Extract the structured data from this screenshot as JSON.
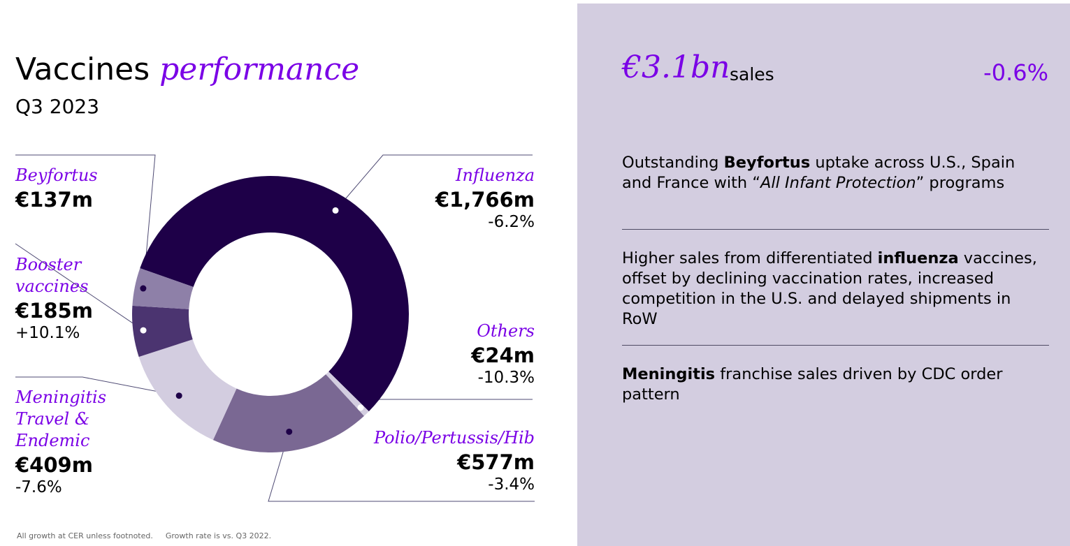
{
  "header": {
    "title_main": "Vaccines",
    "title_accent": "performance",
    "subtitle": "Q3 2023"
  },
  "chart_data": {
    "type": "pie",
    "variant": "donut",
    "unit": "€m",
    "segments": [
      {
        "name": "Influenza",
        "value": 1766,
        "value_label": "€1,766m",
        "growth": "-6.2%",
        "color": "#1e0048"
      },
      {
        "name": "Others",
        "value": 24,
        "value_label": "€24m",
        "growth": "-10.3%",
        "color": "#d3cde0"
      },
      {
        "name": "Polio/Pertussis/Hib",
        "value": 577,
        "value_label": "€577m",
        "growth": "-3.4%",
        "color": "#7a6893"
      },
      {
        "name": "Meningitis Travel & Endemic",
        "name_lines": [
          "Meningitis",
          "Travel &",
          "Endemic"
        ],
        "value": 409,
        "value_label": "€409m",
        "growth": "-7.6%",
        "color": "#d3cde0"
      },
      {
        "name": "Booster vaccines",
        "name_lines": [
          "Booster",
          "vaccines"
        ],
        "value": 185,
        "value_label": "€185m",
        "growth": "+10.1%",
        "color": "#4b3470"
      },
      {
        "name": "Beyfortus",
        "value": 137,
        "value_label": "€137m",
        "growth": "",
        "color": "#8e80a8"
      }
    ]
  },
  "footnote": {
    "cer_note": "All growth at CER unless footnoted.",
    "rate_note": "Growth rate is vs. Q3 2022."
  },
  "summary": {
    "sales_amount": "€3.1bn",
    "sales_word": "sales",
    "sales_growth": "-0.6%"
  },
  "highlights": [
    {
      "pre": "Outstanding ",
      "bold": "Beyfortus",
      "mid": " uptake across U.S., Spain and France with “",
      "italic": "All Infant Protection",
      "post": "” programs"
    },
    {
      "pre": "Higher sales from differentiated ",
      "bold": "influenza",
      "post": " vaccines, offset by declining vaccination rates, increased competition in the U.S. and delayed shipments in RoW"
    },
    {
      "pre": "",
      "bold": "Meningitis",
      "post": " franchise sales driven by CDC order pattern"
    }
  ],
  "colors": {
    "accent": "#7a00e6",
    "panel_bg": "#d3cde0",
    "dark": "#1e0048"
  }
}
